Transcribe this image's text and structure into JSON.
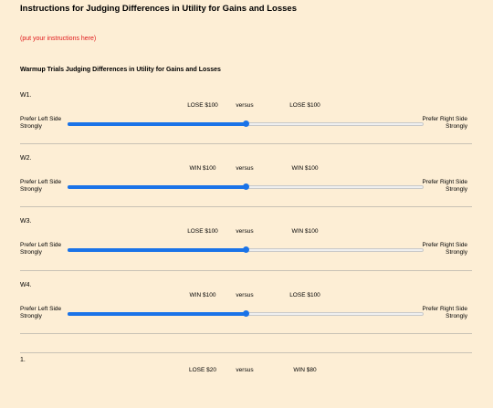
{
  "page": {
    "title": "Instructions for Judging Differences in Utility for Gains and Losses",
    "instructions_placeholder": "(put your instructions here)",
    "section_title": "Warmup Trials Judging Differences in Utility for Gains and Losses"
  },
  "common": {
    "versus": "versus",
    "pref_left": "Prefer Left Side Strongly",
    "pref_right": "Prefer Right Side Strongly"
  },
  "trials": [
    {
      "label": "W1.",
      "left": "LOSE $100",
      "right": "LOSE $100",
      "value": 0.5
    },
    {
      "label": "W2.",
      "left": "WIN $100",
      "right": "WIN $100",
      "value": 0.5
    },
    {
      "label": "W3.",
      "left": "LOSE $100",
      "right": "WIN $100",
      "value": 0.5
    },
    {
      "label": "W4.",
      "left": "WIN $100",
      "right": "LOSE $100",
      "value": 0.5
    },
    {
      "label": "1.",
      "left": "LOSE $20",
      "right": "WIN $80",
      "value": 0.5
    }
  ],
  "colors": {
    "accent": "#1a73e8",
    "instruction_text": "#e0181b",
    "background": "#fdeed5"
  }
}
